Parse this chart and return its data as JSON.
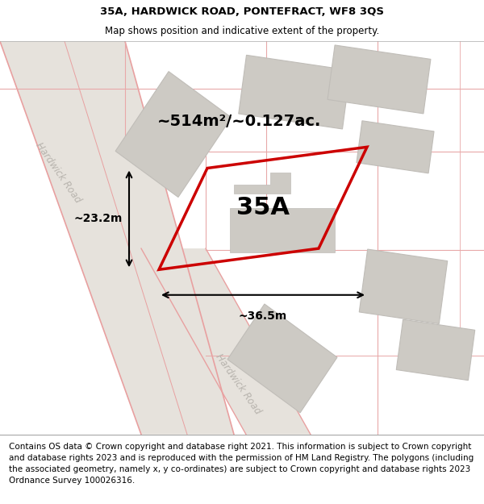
{
  "title_line1": "35A, HARDWICK ROAD, PONTEFRACT, WF8 3QS",
  "title_line2": "Map shows position and indicative extent of the property.",
  "footer_text": "Contains OS data © Crown copyright and database right 2021. This information is subject to Crown copyright and database rights 2023 and is reproduced with the permission of HM Land Registry. The polygons (including the associated geometry, namely x, y co-ordinates) are subject to Crown copyright and database rights 2023 Ordnance Survey 100026316.",
  "area_label": "~514m²/~0.127ac.",
  "property_label": "35A",
  "dim_width": "~36.5m",
  "dim_height": "~23.2m",
  "road_label1": "Hardwick Road",
  "road_label2": "Hardwick Road",
  "map_bg": "#f2f0ec",
  "road_fill": "#e6e2dc",
  "building_fill": "#cdcac4",
  "property_edge_color": "#cc0000",
  "road_line_color": "#e8a0a0",
  "plot_line_color": "#e8a8a8",
  "gray_line_color": "#c0bdb8",
  "title_fontsize": 9.5,
  "subtitle_fontsize": 8.5,
  "footer_fontsize": 7.5,
  "area_label_fontsize": 14,
  "property_label_fontsize": 22,
  "dim_fontsize": 10
}
